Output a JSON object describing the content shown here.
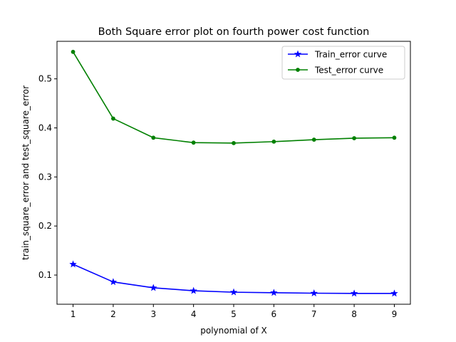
{
  "chart_data": {
    "type": "line",
    "title": "Both Square error plot on fourth power cost function",
    "xlabel": "polynomial of X",
    "ylabel": "train_square_error and test_square_error",
    "x": [
      1,
      2,
      3,
      4,
      5,
      6,
      7,
      8,
      9
    ],
    "xticks": [
      "1",
      "2",
      "3",
      "4",
      "5",
      "6",
      "7",
      "8",
      "9"
    ],
    "yticks": [
      "0.1",
      "0.2",
      "0.3",
      "0.4",
      "0.5"
    ],
    "xlim": [
      0.6,
      9.4
    ],
    "ylim": [
      0.0405,
      0.5765
    ],
    "grid": false,
    "legend": {
      "position": "upper-right"
    },
    "series": [
      {
        "name": "Train_error curve",
        "color": "#0000ff",
        "marker": "star",
        "values": [
          0.122,
          0.086,
          0.074,
          0.068,
          0.065,
          0.064,
          0.063,
          0.0625,
          0.0625
        ]
      },
      {
        "name": "Test_error curve",
        "color": "#008000",
        "marker": "circle",
        "values": [
          0.555,
          0.419,
          0.38,
          0.37,
          0.369,
          0.372,
          0.376,
          0.379,
          0.38
        ]
      }
    ]
  }
}
